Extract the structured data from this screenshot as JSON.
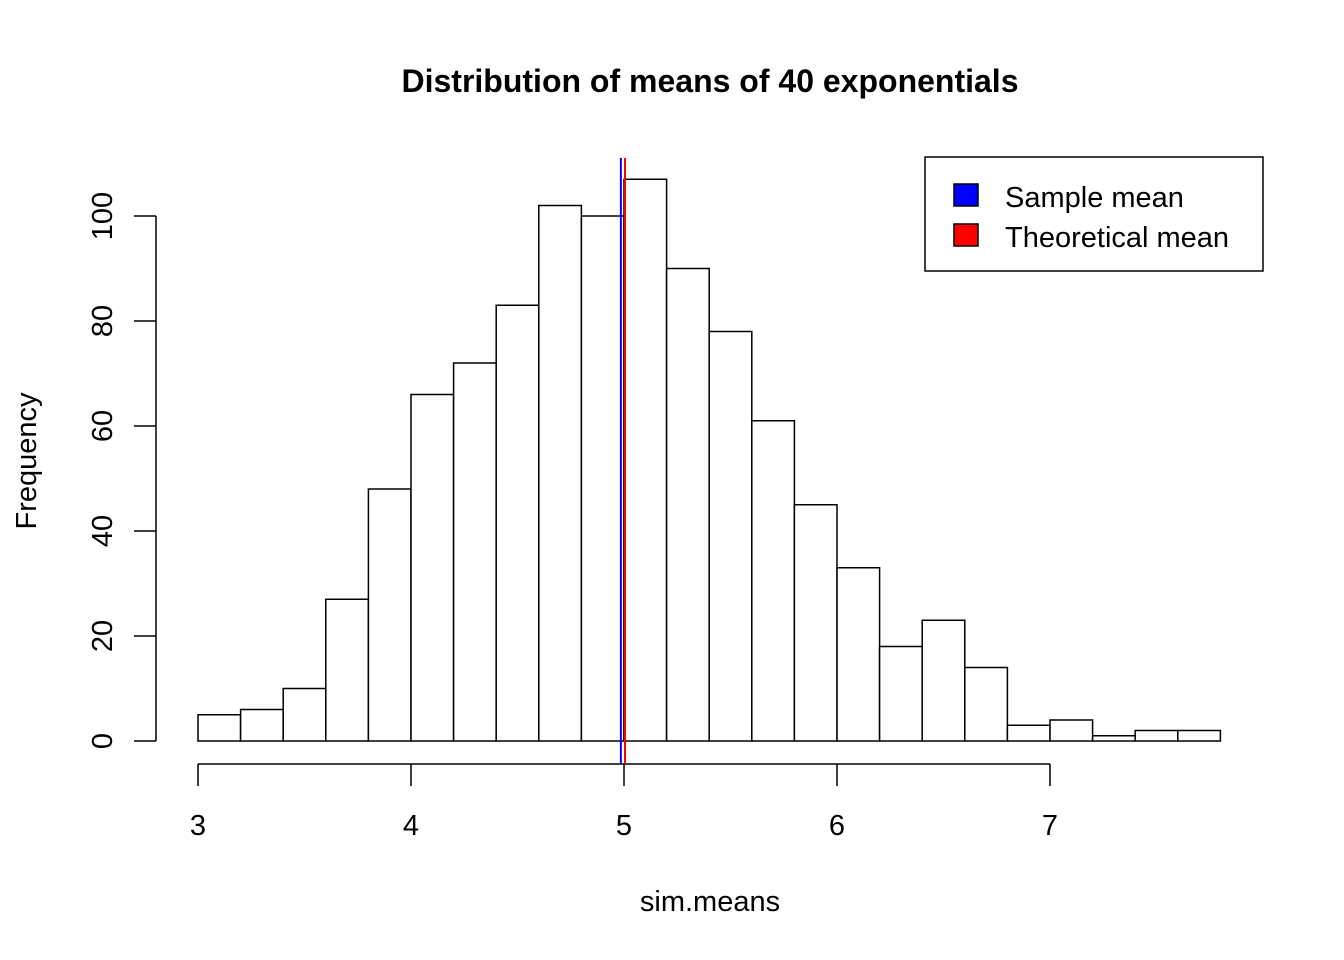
{
  "chart_data": {
    "type": "bar",
    "subtype": "histogram",
    "title": "Distribution of means of 40 exponentials",
    "xlabel": "sim.means",
    "ylabel": "Frequency",
    "bin_edges": [
      3.0,
      3.2,
      3.4,
      3.6,
      3.8,
      4.0,
      4.2,
      4.4,
      4.6,
      4.8,
      5.0,
      5.2,
      5.4,
      5.6,
      5.8,
      6.0,
      6.2,
      6.4,
      6.6,
      6.8,
      7.0,
      7.2,
      7.4,
      7.6,
      7.8
    ],
    "values": [
      5,
      6,
      10,
      27,
      48,
      66,
      72,
      83,
      102,
      100,
      107,
      90,
      78,
      61,
      45,
      33,
      18,
      23,
      14,
      3,
      4,
      1,
      2,
      2
    ],
    "xlim": [
      3,
      7.8
    ],
    "ylim": [
      0,
      111
    ],
    "x_ticks": [
      "3",
      "4",
      "5",
      "6",
      "7"
    ],
    "y_ticks": [
      "0",
      "20",
      "40",
      "60",
      "80",
      "100"
    ],
    "vlines": [
      {
        "name": "Sample mean",
        "x": 4.99,
        "color": "#0000ff"
      },
      {
        "name": "Theoretical mean",
        "x": 5.0,
        "color": "#ff0000"
      }
    ],
    "legend": {
      "position": "top-right",
      "items": [
        {
          "label": "Sample mean",
          "color": "#0000ff"
        },
        {
          "label": "Theoretical mean",
          "color": "#ff0000"
        }
      ]
    },
    "grid": false
  }
}
